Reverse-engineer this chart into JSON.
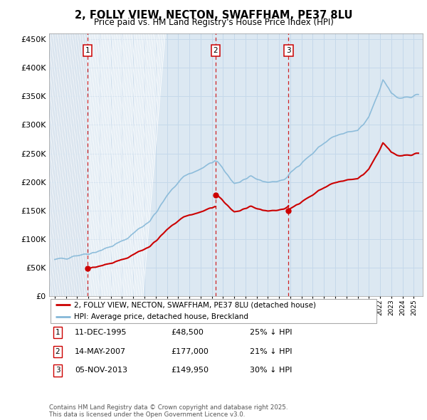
{
  "title": "2, FOLLY VIEW, NECTON, SWAFFHAM, PE37 8LU",
  "subtitle": "Price paid vs. HM Land Registry's House Price Index (HPI)",
  "legend_line1": "2, FOLLY VIEW, NECTON, SWAFFHAM, PE37 8LU (detached house)",
  "legend_line2": "HPI: Average price, detached house, Breckland",
  "transaction_labels": [
    "1",
    "2",
    "3"
  ],
  "table_rows": [
    {
      "num": "1",
      "date": "11-DEC-1995",
      "price": "£48,500",
      "note": "25% ↓ HPI"
    },
    {
      "num": "2",
      "date": "14-MAY-2007",
      "price": "£177,000",
      "note": "21% ↓ HPI"
    },
    {
      "num": "3",
      "date": "05-NOV-2013",
      "price": "£149,950",
      "note": "30% ↓ HPI"
    }
  ],
  "footer": "Contains HM Land Registry data © Crown copyright and database right 2025.\nThis data is licensed under the Open Government Licence v3.0.",
  "red_color": "#cc0000",
  "hpi_color": "#85b8d8",
  "ylim": [
    0,
    460000
  ],
  "grid_color": "#c5d8ea",
  "bg_color": "#dce8f2",
  "hatch_color": "#ccdae8"
}
